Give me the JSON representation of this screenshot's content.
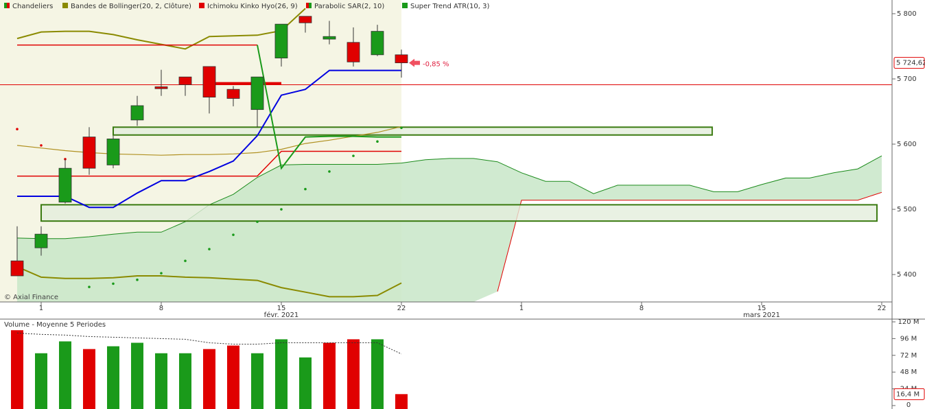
{
  "chart_data": [
    {
      "type": "candlestick",
      "legend": [
        {
          "name": "Chandeliers",
          "colors": [
            "#1a9a1a",
            "#e00000"
          ]
        },
        {
          "name": "Bandes de Bollinger(20, 2, Clôture)",
          "colors": [
            "#8a8a00"
          ]
        },
        {
          "name": "Ichimoku Kinko Hyo(26, 9)",
          "colors": [
            "#e00000"
          ]
        },
        {
          "name": "Parabolic SAR(2, 10)",
          "colors": [
            "#e00000",
            "#1a9a1a"
          ]
        },
        {
          "name": "Super Trend ATR(10, 3)",
          "colors": [
            "#1a9a1a"
          ]
        }
      ],
      "up_color": "#1a9a1a",
      "down_color": "#e00000",
      "open": [
        5421,
        5441,
        5511,
        5611,
        5568,
        5637,
        5688,
        5703,
        5719,
        5684,
        5653,
        5732,
        5796,
        5761,
        5756,
        5737,
        5737
      ],
      "high": [
        5474,
        5474,
        5577,
        5626,
        5613,
        5674,
        5714,
        5703,
        5719,
        5689,
        5703,
        5784,
        5796,
        5789,
        5779,
        5783,
        5745
      ],
      "low": [
        5398,
        5429,
        5509,
        5553,
        5563,
        5628,
        5674,
        5674,
        5647,
        5658,
        5626,
        5719,
        5771,
        5753,
        5719,
        5735,
        5702
      ],
      "close": [
        5398,
        5462,
        5563,
        5563,
        5608,
        5659,
        5685,
        5691,
        5672,
        5670,
        5703,
        5784,
        5786,
        5765,
        5726,
        5773,
        5724.62
      ],
      "last_label": {
        "value": 5724.62,
        "label": "5 724,62"
      },
      "change_annotation": "-0,85 %",
      "reference_line": 5691,
      "lines": [
        {
          "color": "#8a8a00",
          "width": 2,
          "values": [
            5762,
            5772,
            5773,
            5773,
            5768,
            5760,
            5753,
            5746,
            5765,
            5766,
            5767,
            5774,
            5808,
            null,
            null,
            null,
            null
          ]
        },
        {
          "color": "#b09020",
          "width": 1.2,
          "values": [
            5598,
            5594,
            5590,
            5587,
            5585,
            5584,
            5583,
            5584,
            5584,
            5585,
            5587,
            5592,
            5601,
            5606,
            5612,
            5618,
            5627
          ]
        },
        {
          "color": "#8a8a00",
          "width": 2,
          "values": [
            5412,
            5396,
            5394,
            5394,
            5395,
            5398,
            5398,
            5396,
            5395,
            5393,
            5391,
            5380,
            5373,
            5366,
            5366,
            5368,
            5387
          ]
        },
        {
          "color": "#e00000",
          "width": 1.5,
          "values": [
            5752,
            5752,
            5752,
            5752,
            5752,
            5752,
            5752,
            5752,
            5752,
            5752,
            5752,
            null,
            null,
            null,
            null,
            null,
            null
          ]
        },
        {
          "color": "#e00000",
          "width": 1.5,
          "values": [
            5551,
            5551,
            5551,
            5551,
            5551,
            5551,
            5551,
            5551,
            5551,
            5551,
            5551,
            5589,
            5589,
            5589,
            5589,
            5589,
            5589
          ]
        },
        {
          "color": "#e00000",
          "width": 4,
          "values": [
            null,
            null,
            null,
            null,
            null,
            null,
            null,
            null,
            5693,
            5693,
            5693,
            5693,
            null,
            null,
            null,
            null,
            null
          ]
        },
        {
          "color": "#0000e0",
          "width": 2,
          "values": [
            5520,
            5520,
            5520,
            5503,
            5503,
            5525,
            5544,
            5544,
            5558,
            5574,
            5613,
            5675,
            5684,
            5713,
            5713,
            5713,
            5713
          ]
        },
        {
          "color": "#1a9a1a",
          "width": 2,
          "values": [
            null,
            null,
            null,
            null,
            null,
            null,
            null,
            null,
            null,
            null,
            5752,
            5563,
            5611,
            5612,
            5612,
            5611,
            5611
          ]
        }
      ],
      "sar": {
        "values": [
          5623,
          5598,
          5577,
          5381,
          5386,
          5392,
          5402,
          5421,
          5439,
          5461,
          5481,
          5500,
          5531,
          5558,
          5582,
          5604,
          5625
        ],
        "colors": [
          "#e00000",
          "#e00000",
          "#e00000",
          "#1a9a1a",
          "#1a9a1a",
          "#1a9a1a",
          "#1a9a1a",
          "#1a9a1a",
          "#1a9a1a",
          "#1a9a1a",
          "#1a9a1a",
          "#1a9a1a",
          "#1a9a1a",
          "#1a9a1a",
          "#1a9a1a",
          "#1a9a1a",
          "#1a9a1a"
        ]
      },
      "cloud": {
        "fill": "#c8e6c8",
        "span_a_color": "#1a8a1a",
        "span_b_color": "#e00000",
        "span_a": [
          5456,
          5455,
          5455,
          5458,
          5462,
          5465,
          5465,
          5481,
          5507,
          5523,
          5549,
          5568,
          5569,
          5569,
          5569,
          5569,
          5571,
          5576,
          5578,
          5578,
          5573,
          5556,
          5543,
          5543,
          5524,
          5537,
          5537,
          5537,
          5537,
          5527,
          5527,
          5538,
          5548,
          5548,
          5556,
          5562,
          5582
        ],
        "span_b": [
          null,
          null,
          null,
          null,
          null,
          null,
          null,
          null,
          null,
          null,
          null,
          null,
          null,
          null,
          null,
          null,
          null,
          null,
          null,
          null,
          5374,
          5514,
          5514,
          5514,
          5514,
          5514,
          5514,
          5514,
          5514,
          5514,
          5514,
          5514,
          5514,
          5514,
          5514,
          5514,
          5526
        ]
      },
      "zones": [
        {
          "x": [
            4,
            28.94
          ],
          "y": [
            5614,
            5626
          ]
        },
        {
          "x": [
            1,
            35.8
          ],
          "y": [
            5482,
            5507
          ]
        }
      ],
      "xlim": [
        -0.714,
        36.43
      ],
      "xticks": [
        {
          "value": 1,
          "label": "1"
        },
        {
          "value": 6,
          "label": "8"
        },
        {
          "value": 11,
          "label": "15"
        },
        {
          "value": 16,
          "label": "22"
        },
        {
          "value": 21,
          "label": "1"
        },
        {
          "value": 26,
          "label": "8"
        },
        {
          "value": 31,
          "label": "15"
        },
        {
          "value": 36,
          "label": "22"
        }
      ],
      "month_labels": [
        {
          "value": 11,
          "label": "févr. 2021"
        },
        {
          "value": 31,
          "label": "mars 2021"
        }
      ],
      "ylim": [
        5358,
        5821
      ],
      "yticks": [
        {
          "value": 5800,
          "label": "5 800"
        },
        {
          "value": 5700,
          "label": "5 700"
        },
        {
          "value": 5600,
          "label": "5 600"
        },
        {
          "value": 5500,
          "label": "5 500"
        },
        {
          "value": 5400,
          "label": "5 400"
        }
      ],
      "copyright": "© Axial Finance"
    },
    {
      "type": "volume",
      "title": "Volume  - Moyenne 5 Periodes",
      "values": [
        108,
        75,
        92,
        81,
        85,
        90,
        75,
        75,
        81,
        86,
        75,
        95,
        69,
        90,
        95,
        95,
        16.4
      ],
      "colors": [
        "#e00000",
        "#1a9a1a",
        "#1a9a1a",
        "#e00000",
        "#1a9a1a",
        "#1a9a1a",
        "#1a9a1a",
        "#1a9a1a",
        "#e00000",
        "#e00000",
        "#1a9a1a",
        "#1a9a1a",
        "#1a9a1a",
        "#e00000",
        "#e00000",
        "#1a9a1a",
        "#e00000"
      ],
      "average": [
        104,
        102,
        101,
        99,
        98,
        97,
        96,
        95,
        90,
        88,
        88,
        90,
        90,
        90,
        90,
        90,
        74
      ],
      "last_label": {
        "value": 16.4,
        "label": "16,4 M"
      },
      "ylim": [
        0,
        120
      ],
      "yticks": [
        {
          "value": 120,
          "label": "120 M"
        },
        {
          "value": 96,
          "label": "96 M"
        },
        {
          "value": 72,
          "label": "72 M"
        },
        {
          "value": 48,
          "label": "48 M"
        },
        {
          "value": 24,
          "label": "24 M"
        },
        0
      ]
    }
  ]
}
